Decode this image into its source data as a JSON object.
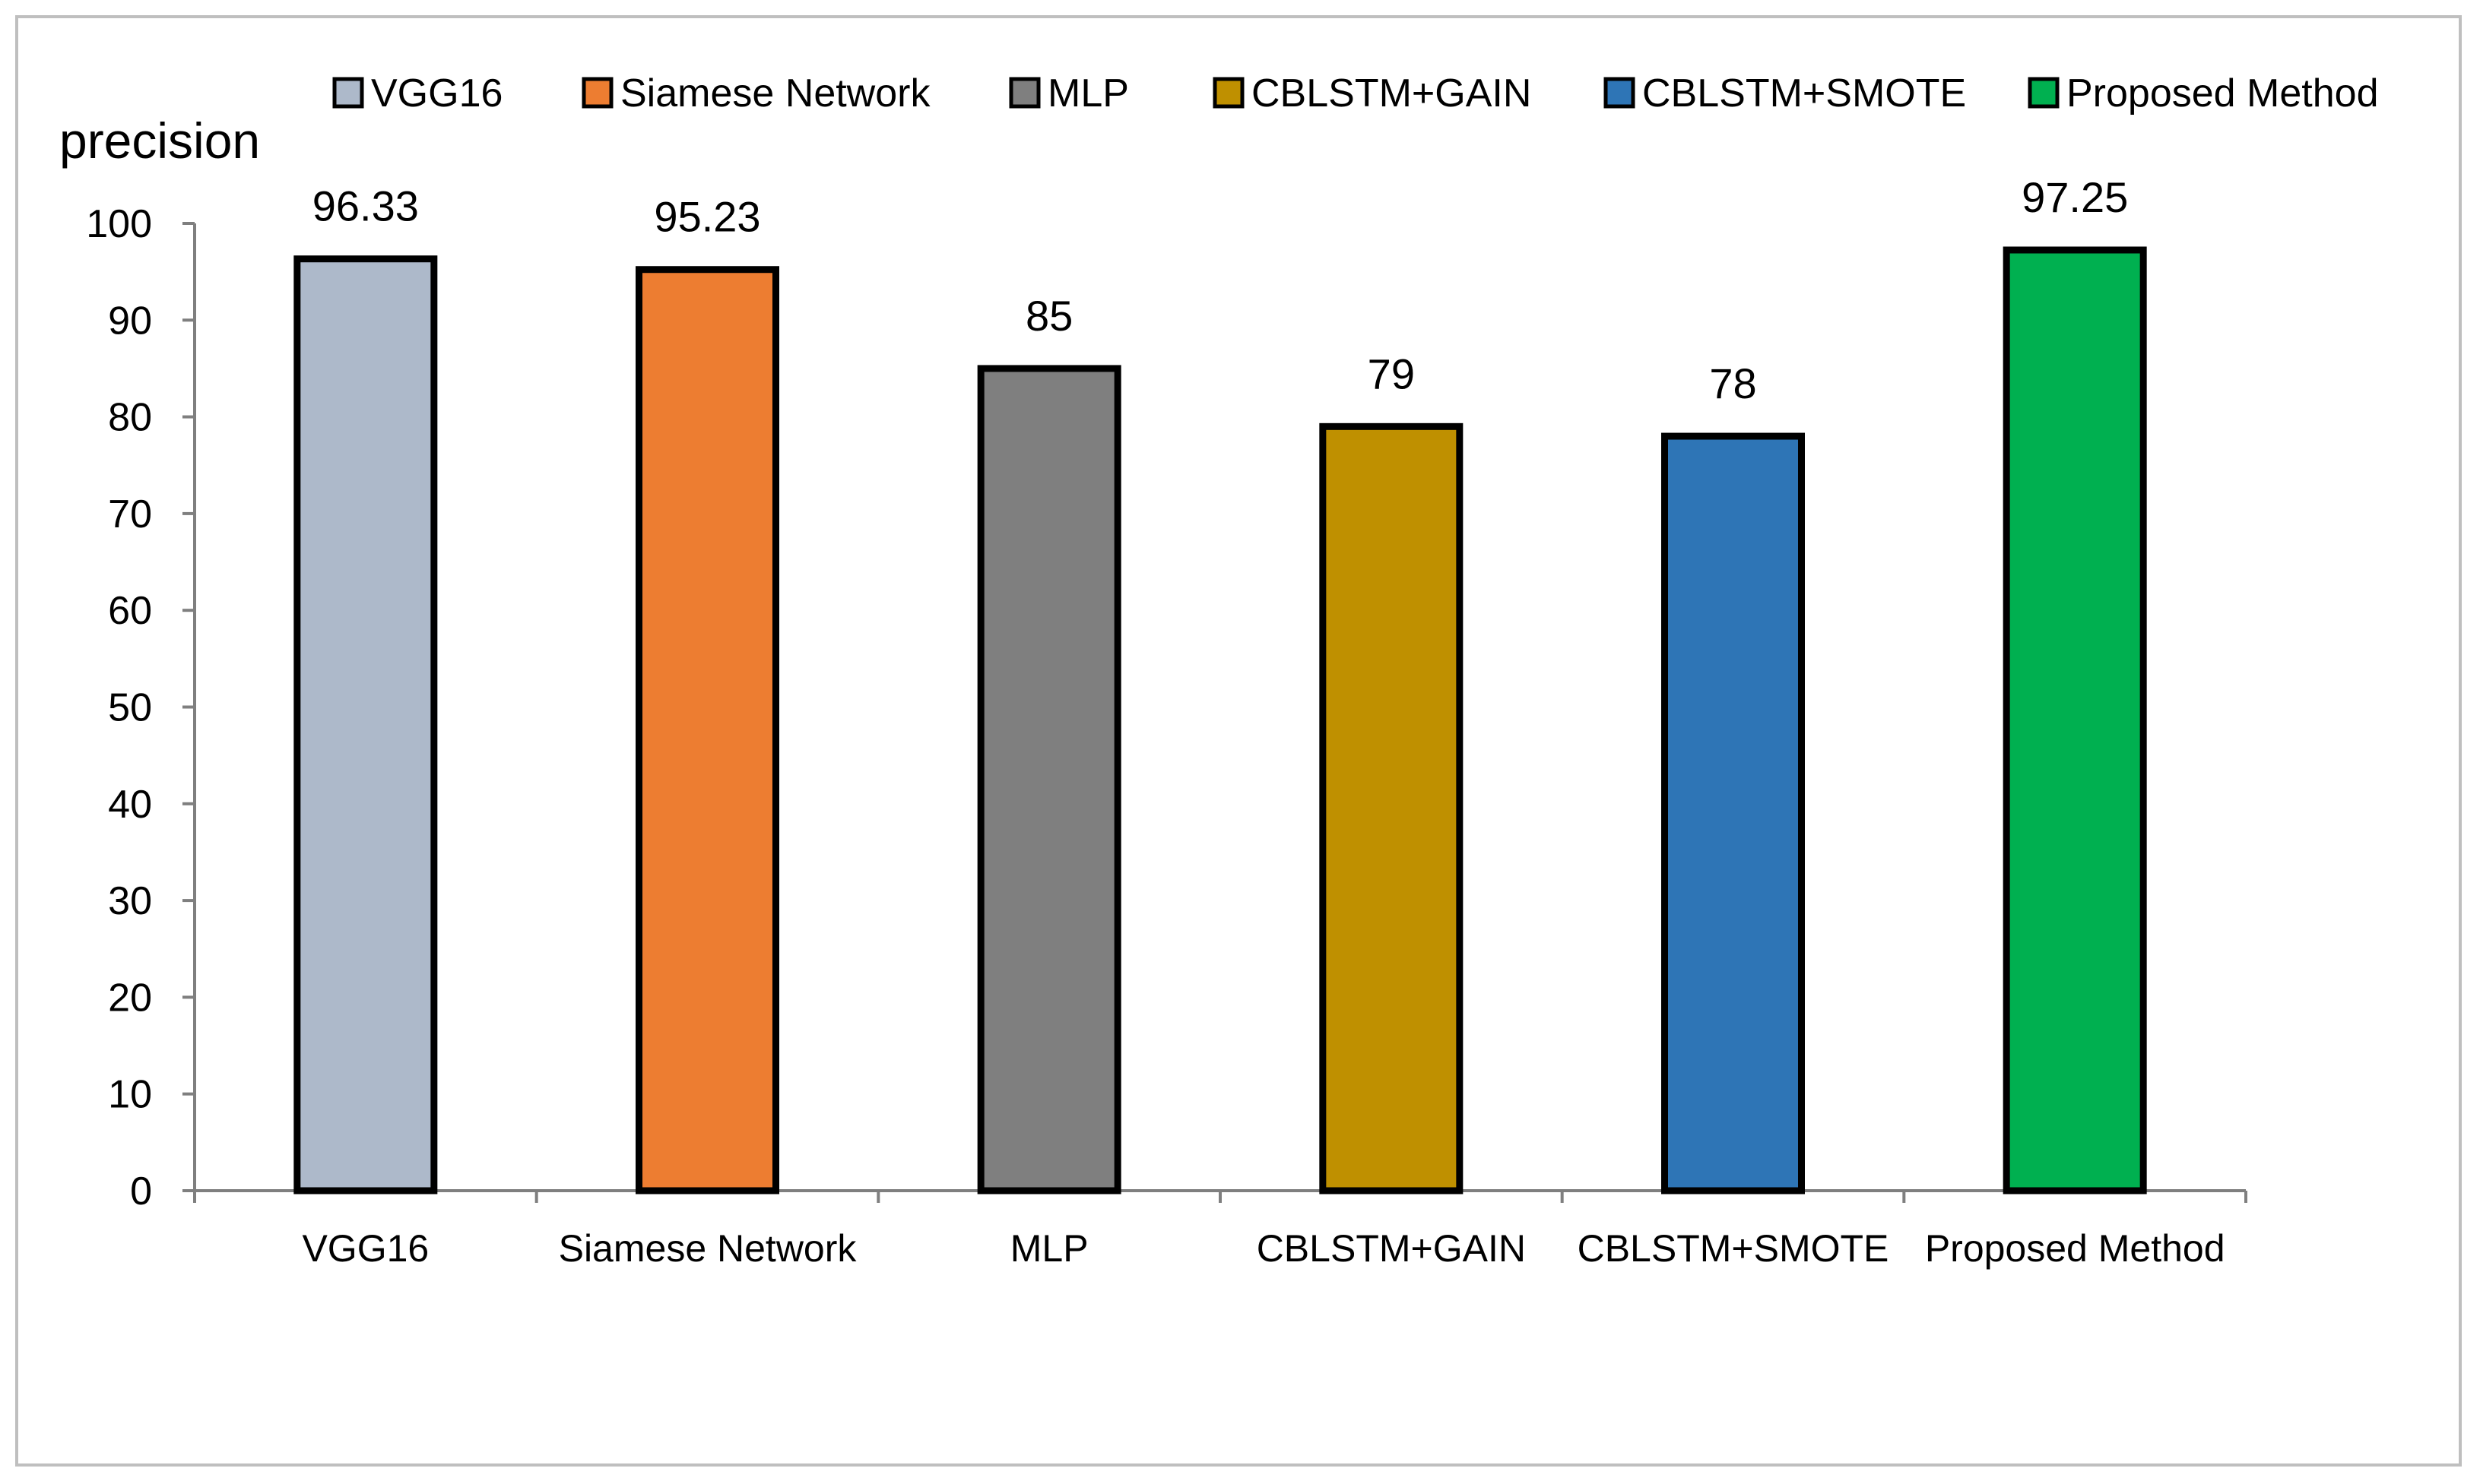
{
  "chart_data": {
    "type": "bar",
    "ylabel": "precision",
    "xlabel": "",
    "ylim": [
      0,
      100
    ],
    "yticks": [
      0,
      10,
      20,
      30,
      40,
      50,
      60,
      70,
      80,
      90,
      100
    ],
    "categories": [
      "VGG16",
      "Siamese Network",
      "MLP",
      "CBLSTM+GAIN",
      "CBLSTM+SMOTE",
      "Proposed Method"
    ],
    "values": [
      96.33,
      95.23,
      85,
      79,
      78,
      97.25
    ],
    "value_labels": [
      "96.33",
      "95.23",
      "85",
      "79",
      "78",
      "97.25"
    ],
    "colors": [
      "#adb9ca",
      "#ed7d31",
      "#7f7f7f",
      "#bf9000",
      "#2e75b6",
      "#00b050"
    ],
    "legend": {
      "placement": "top",
      "entries": [
        "VGG16",
        "Siamese Network",
        "MLP",
        "CBLSTM+GAIN",
        "CBLSTM+SMOTE",
        "Proposed Method"
      ]
    },
    "grid": false
  }
}
